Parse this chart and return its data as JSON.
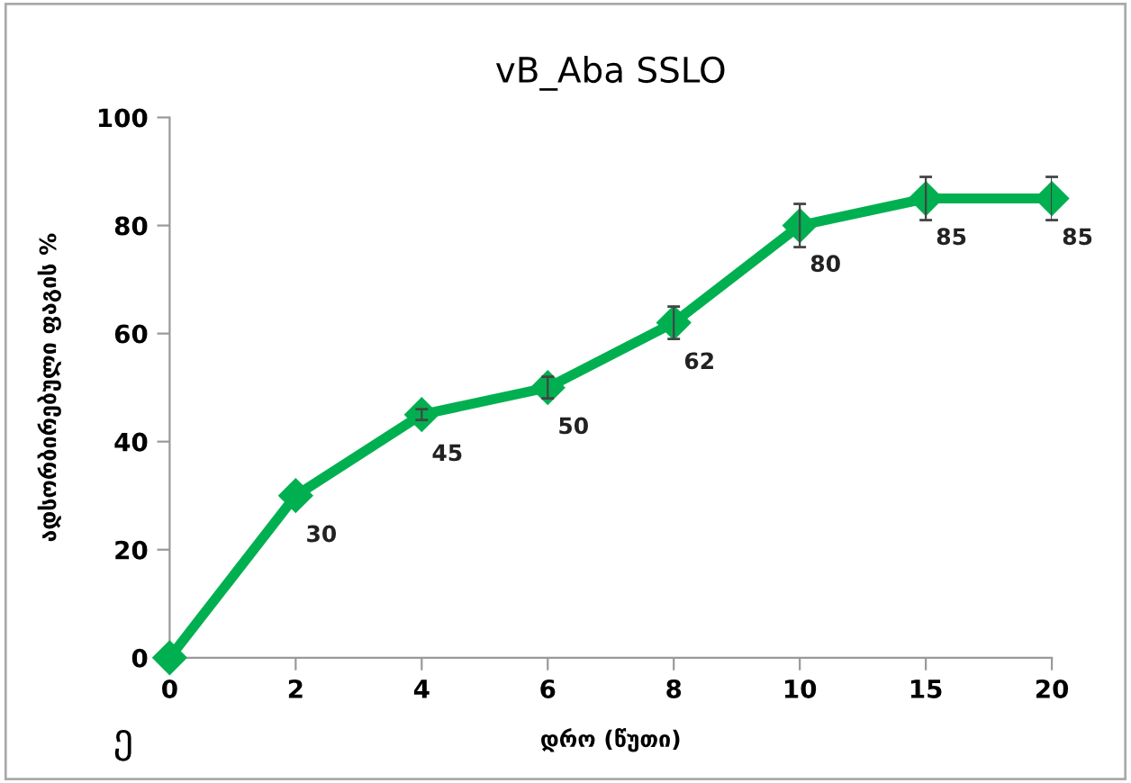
{
  "chart_data": {
    "type": "line",
    "title": "vB_Aba SSLO",
    "xlabel": "დრო (წუთი)",
    "ylabel": "ადსორბირებული ფაგის %",
    "categories": [
      "0",
      "2",
      "4",
      "6",
      "8",
      "10",
      "15",
      "20"
    ],
    "series": [
      {
        "color": "#00b050",
        "values": [
          0,
          30,
          45,
          50,
          62,
          80,
          85,
          85
        ],
        "value_labels": [
          null,
          "30",
          "45",
          "50",
          "62",
          "80",
          "85",
          "85"
        ],
        "errors": [
          null,
          null,
          1,
          2,
          3,
          4,
          4,
          4
        ]
      }
    ],
    "ylim": [
      0,
      100
    ],
    "yticks": [
      0,
      20,
      40,
      60,
      80,
      100
    ],
    "marker": "diamond",
    "line_style": "solid",
    "grid": false,
    "legend": false,
    "annotations": [
      "ე"
    ]
  }
}
